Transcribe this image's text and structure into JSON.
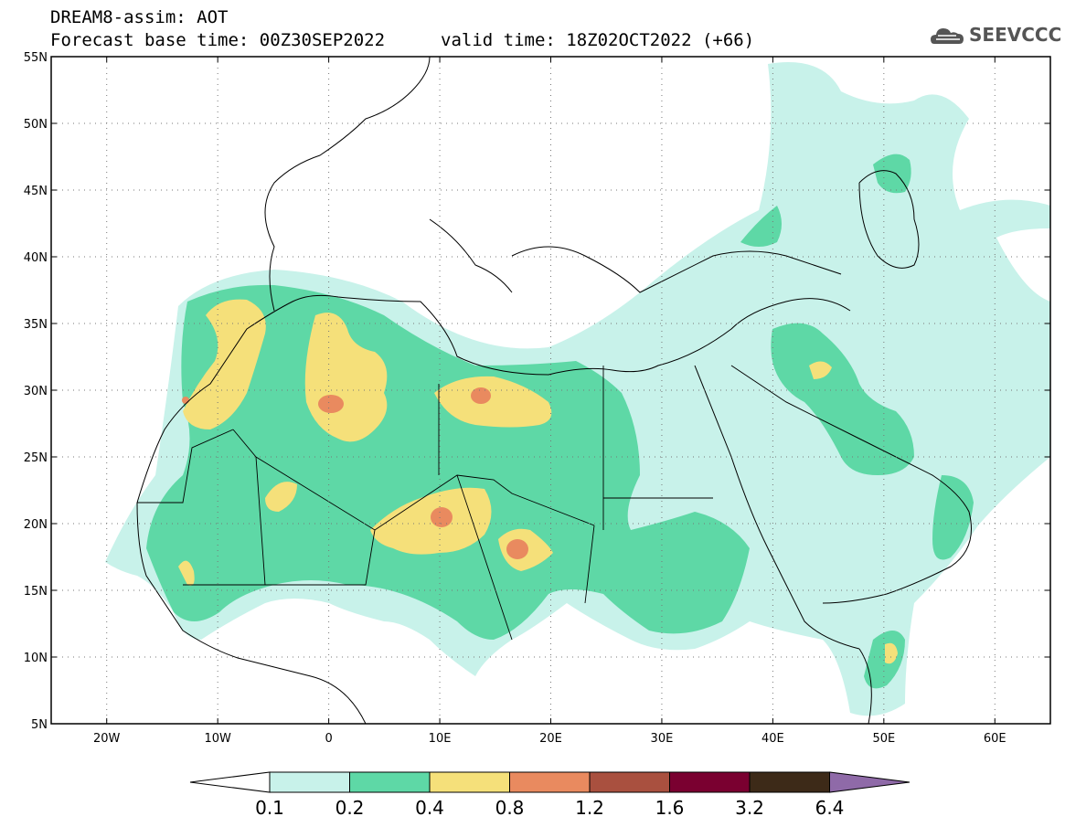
{
  "header": {
    "title": "DREAM8-assim: AOT",
    "base_time": "Forecast base time: 00Z30SEP2022",
    "valid_time": "valid time: 18Z02OCT2022 (+66)",
    "logo_text": "SEEVCCC"
  },
  "map": {
    "lat_labels": [
      "55N",
      "50N",
      "45N",
      "40N",
      "35N",
      "30N",
      "25N",
      "20N",
      "15N",
      "10N",
      "5N"
    ],
    "lon_labels": [
      "20W",
      "10W",
      "0",
      "10E",
      "20E",
      "30E",
      "40E",
      "50E",
      "60E"
    ],
    "lat_range": [
      5,
      55
    ],
    "lon_range": [
      -25,
      65
    ],
    "grid": true
  },
  "colorbar": {
    "ticks": [
      "0.1",
      "0.2",
      "0.4",
      "0.8",
      "1.2",
      "1.6",
      "3.2",
      "6.4"
    ],
    "colors": [
      "#ffffff",
      "#c8f2ea",
      "#5ed8a6",
      "#f5e07a",
      "#e98a5f",
      "#a9503f",
      "#7a0030",
      "#3d2a18",
      "#8f6aa8"
    ]
  }
}
